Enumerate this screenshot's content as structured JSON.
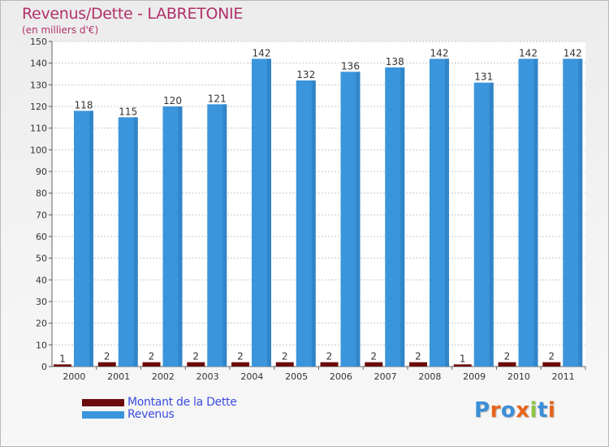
{
  "colors": {
    "title": "#b1306a",
    "axis_text": "#333333",
    "grid": "#c8c8c8",
    "dette": "#6b0b0b",
    "revenus": "#3a95dc",
    "legend_text": "#3a4de0"
  },
  "logo": {
    "text": "Proxiti",
    "letters": [
      "P",
      "r",
      "o",
      "x",
      "i",
      "t",
      "i"
    ],
    "letter_colors": [
      "#3b8ed8",
      "#e8641b",
      "#3b8ed8",
      "#e8641b",
      "#8cc63f",
      "#3b8ed8",
      "#e8641b"
    ]
  },
  "chart_data": {
    "type": "bar",
    "title": "Revenus/Dette - LABRETONIE",
    "subtitle": "(en milliers d'€)",
    "xlabel": "",
    "ylabel": "",
    "ylim": [
      0,
      150
    ],
    "ytick_step": 10,
    "grid": true,
    "legend_position": "bottom-left",
    "categories": [
      "2000",
      "2001",
      "2002",
      "2003",
      "2004",
      "2005",
      "2006",
      "2007",
      "2008",
      "2009",
      "2010",
      "2011"
    ],
    "series": [
      {
        "name": "Montant de la Dette",
        "color": "#6b0b0b",
        "values": [
          1,
          2,
          2,
          2,
          2,
          2,
          2,
          2,
          2,
          1,
          2,
          2
        ]
      },
      {
        "name": "Revenus",
        "color": "#3a95dc",
        "values": [
          118,
          115,
          120,
          121,
          142,
          132,
          136,
          138,
          142,
          131,
          142,
          142
        ]
      }
    ]
  }
}
